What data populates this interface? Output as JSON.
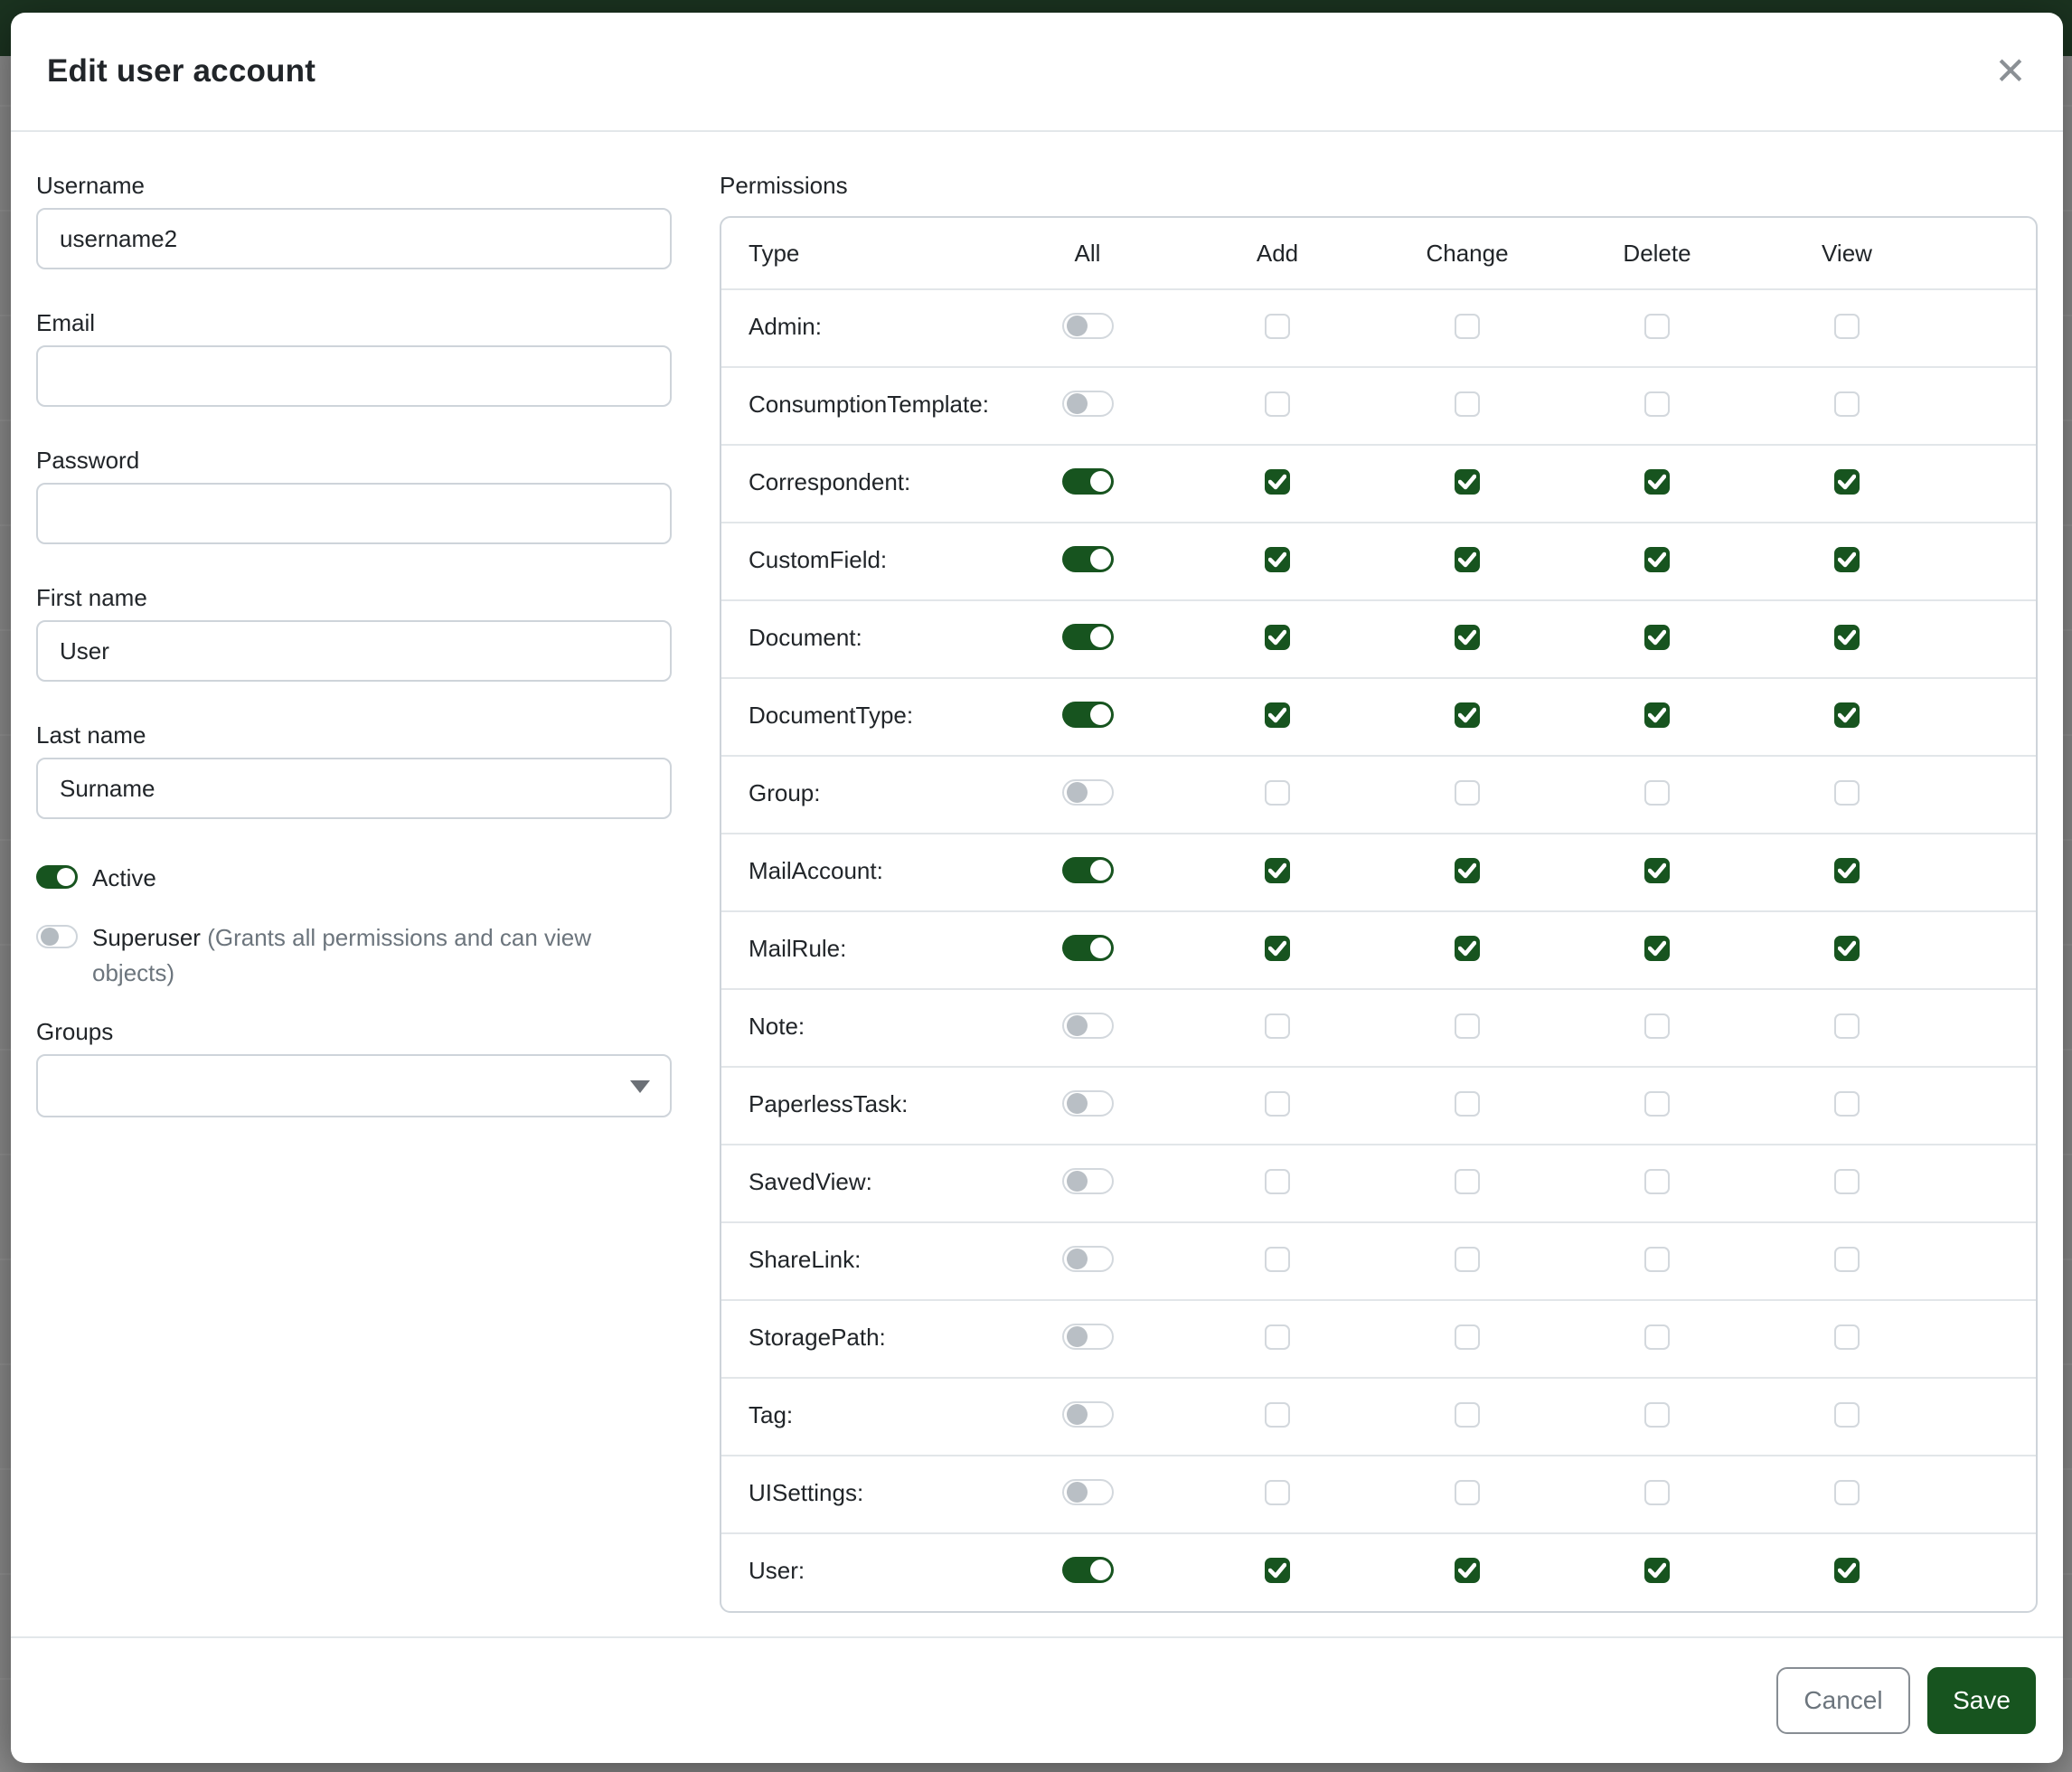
{
  "modal": {
    "title": "Edit user account",
    "close_icon": "✕"
  },
  "form": {
    "username": {
      "label": "Username",
      "value": "username2"
    },
    "email": {
      "label": "Email",
      "value": ""
    },
    "password": {
      "label": "Password",
      "value": ""
    },
    "first_name": {
      "label": "First name",
      "value": "User"
    },
    "last_name": {
      "label": "Last name",
      "value": "Surname"
    },
    "active": {
      "label": "Active",
      "enabled": true
    },
    "superuser": {
      "label": "Superuser",
      "hint": "(Grants all permissions and can view objects)",
      "enabled": false
    },
    "groups": {
      "label": "Groups",
      "value": "",
      "dropdown_icon": "caret-down"
    }
  },
  "permissions": {
    "label": "Permissions",
    "columns": [
      "Type",
      "All",
      "Add",
      "Change",
      "Delete",
      "View"
    ],
    "rows": [
      {
        "type": "Admin:",
        "all": false,
        "add": false,
        "change": false,
        "delete": false,
        "view": false
      },
      {
        "type": "ConsumptionTemplate:",
        "all": false,
        "add": false,
        "change": false,
        "delete": false,
        "view": false
      },
      {
        "type": "Correspondent:",
        "all": true,
        "add": true,
        "change": true,
        "delete": true,
        "view": true
      },
      {
        "type": "CustomField:",
        "all": true,
        "add": true,
        "change": true,
        "delete": true,
        "view": true
      },
      {
        "type": "Document:",
        "all": true,
        "add": true,
        "change": true,
        "delete": true,
        "view": true
      },
      {
        "type": "DocumentType:",
        "all": true,
        "add": true,
        "change": true,
        "delete": true,
        "view": true
      },
      {
        "type": "Group:",
        "all": false,
        "add": false,
        "change": false,
        "delete": false,
        "view": false
      },
      {
        "type": "MailAccount:",
        "all": true,
        "add": true,
        "change": true,
        "delete": true,
        "view": true
      },
      {
        "type": "MailRule:",
        "all": true,
        "add": true,
        "change": true,
        "delete": true,
        "view": true
      },
      {
        "type": "Note:",
        "all": false,
        "add": false,
        "change": false,
        "delete": false,
        "view": false
      },
      {
        "type": "PaperlessTask:",
        "all": false,
        "add": false,
        "change": false,
        "delete": false,
        "view": false
      },
      {
        "type": "SavedView:",
        "all": false,
        "add": false,
        "change": false,
        "delete": false,
        "view": false
      },
      {
        "type": "ShareLink:",
        "all": false,
        "add": false,
        "change": false,
        "delete": false,
        "view": false
      },
      {
        "type": "StoragePath:",
        "all": false,
        "add": false,
        "change": false,
        "delete": false,
        "view": false
      },
      {
        "type": "Tag:",
        "all": false,
        "add": false,
        "change": false,
        "delete": false,
        "view": false
      },
      {
        "type": "UISettings:",
        "all": false,
        "add": false,
        "change": false,
        "delete": false,
        "view": false
      },
      {
        "type": "User:",
        "all": true,
        "add": true,
        "change": true,
        "delete": true,
        "view": true
      }
    ]
  },
  "footer": {
    "cancel_label": "Cancel",
    "save_label": "Save"
  },
  "colors": {
    "primary": "#17541f",
    "backdrop": "#8d8d8d",
    "border": "#ced4da"
  }
}
